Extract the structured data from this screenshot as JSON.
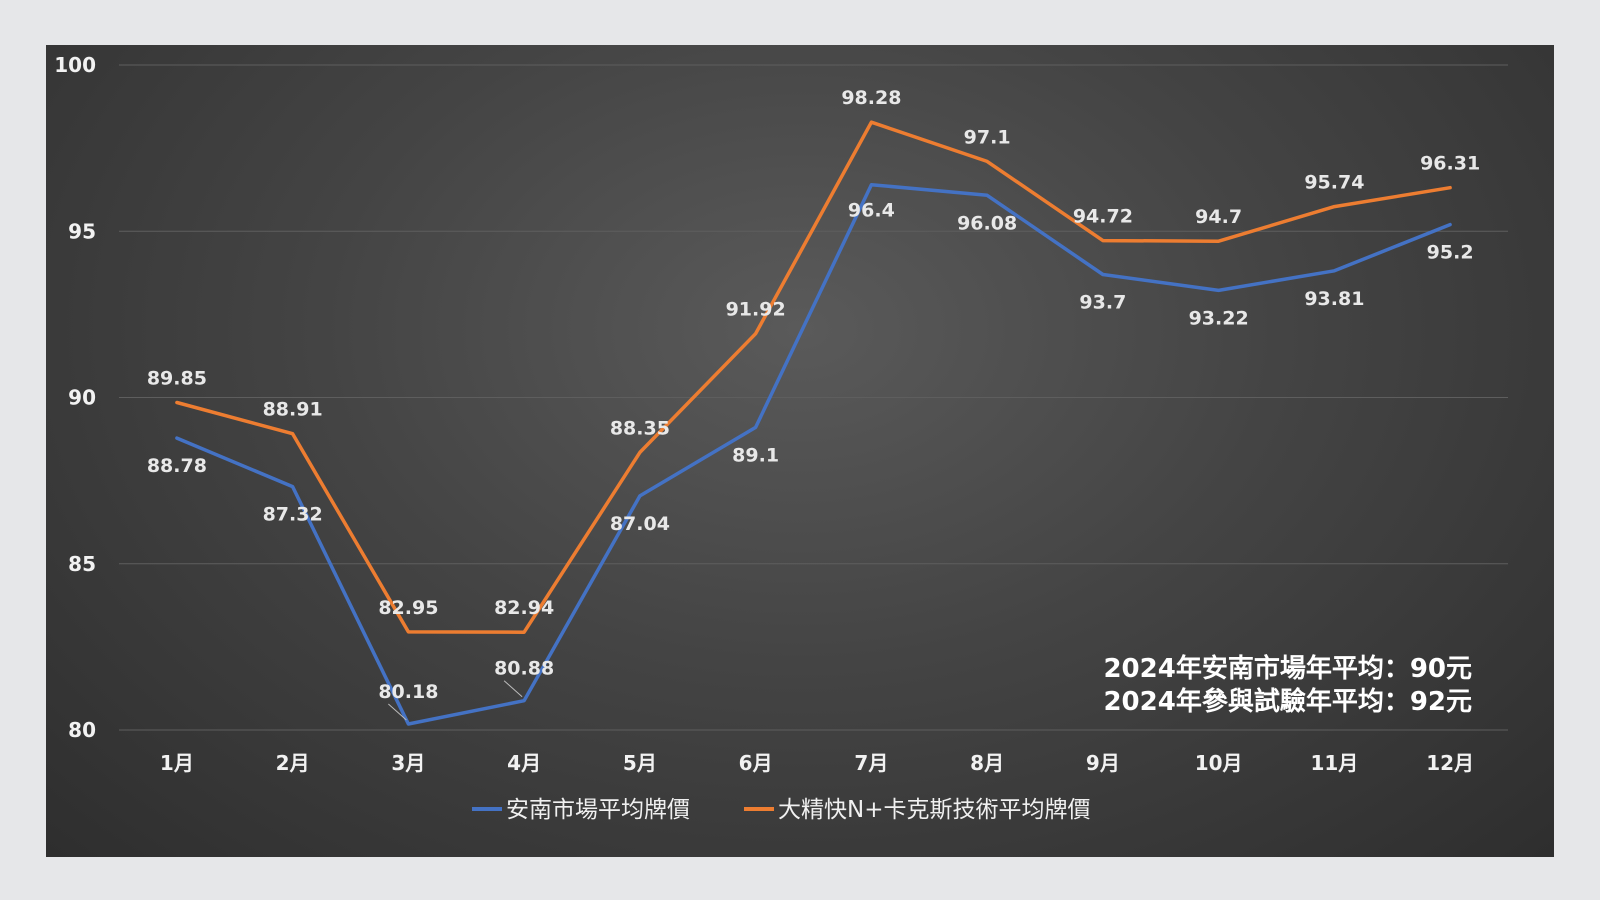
{
  "chart_data": {
    "type": "line",
    "categories": [
      "1月",
      "2月",
      "3月",
      "4月",
      "5月",
      "6月",
      "7月",
      "8月",
      "9月",
      "10月",
      "11月",
      "12月"
    ],
    "series": [
      {
        "name": "安南市場平均牌價",
        "color": "#4472c4",
        "values": [
          88.78,
          87.32,
          80.18,
          80.88,
          87.04,
          89.1,
          96.4,
          96.08,
          93.7,
          93.22,
          93.81,
          95.2
        ],
        "labels": [
          "88.78",
          "87.32",
          "80.18",
          "80.88",
          "87.04",
          "89.1",
          "96.4",
          "96.08",
          "93.7",
          "93.22",
          "93.81",
          "95.2"
        ]
      },
      {
        "name": "大精快N+卡克斯技術平均牌價",
        "color": "#ed7d31",
        "values": [
          89.85,
          88.91,
          82.95,
          82.94,
          88.35,
          91.92,
          98.28,
          97.1,
          94.72,
          94.7,
          95.74,
          96.31
        ],
        "labels": [
          "89.85",
          "88.91",
          "82.95",
          "82.94",
          "88.35",
          "91.92",
          "98.28",
          "97.1",
          "94.72",
          "94.7",
          "95.74",
          "96.31"
        ]
      }
    ],
    "ylim": [
      80,
      100
    ],
    "yticks": [
      "80",
      "85",
      "90",
      "95",
      "100"
    ],
    "grid": true,
    "legend": "bottom",
    "annotations": [
      "2024年安南市場年平均：90元",
      "2024年參與試驗年平均：92元"
    ]
  }
}
